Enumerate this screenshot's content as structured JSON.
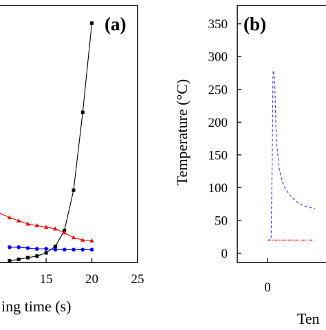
{
  "chart_data": [
    {
      "panel_label": "(a)",
      "type": "line",
      "xlabel": "ing time (s)",
      "ylabel": "",
      "xlim": [
        9.2,
        25
      ],
      "ylim": [
        0,
        320
      ],
      "x_ticks": [
        15,
        20,
        25
      ],
      "x_tick_labels": [
        "15",
        "20",
        "25"
      ],
      "grid": false,
      "series": [
        {
          "color": "#000000",
          "marker": "square",
          "x": [
            11,
            12,
            13,
            14,
            15,
            16,
            17,
            18,
            19,
            20
          ],
          "y": [
            2,
            4,
            6,
            8,
            12,
            20,
            40,
            90,
            187,
            298
          ]
        },
        {
          "color": "#ff0000",
          "marker": "triangle",
          "x": [
            9.8,
            11,
            12,
            13,
            14,
            15,
            16,
            17,
            18,
            19,
            20
          ],
          "y": [
            62,
            56,
            52,
            48,
            46,
            44,
            42,
            37,
            31,
            28,
            27
          ]
        },
        {
          "color": "#0000ff",
          "marker": "circle",
          "x": [
            11,
            12,
            13,
            14,
            15,
            16,
            17,
            18,
            19,
            20
          ],
          "y": [
            19,
            19,
            18,
            17,
            17,
            16,
            16,
            16,
            16,
            16
          ]
        }
      ]
    },
    {
      "panel_label": "(b)",
      "type": "line",
      "xlabel": "Ten",
      "ylabel": "Temperature (°C)",
      "xlim": [
        -5,
        10
      ],
      "ylim": [
        -20,
        370
      ],
      "x_ticks": [
        0
      ],
      "x_tick_labels": [
        "0"
      ],
      "y_ticks": [
        0,
        50,
        100,
        150,
        200,
        250,
        300,
        350
      ],
      "y_tick_labels": [
        "0",
        "50",
        "100",
        "150",
        "200",
        "250",
        "300",
        "350"
      ],
      "grid": false,
      "series": [
        {
          "color": "#4444ee",
          "style": "dashed",
          "x": [
            0,
            0.3,
            0.6,
            0.8,
            0.92,
            1.0,
            1.2,
            1.5,
            2.0,
            2.5,
            3.0,
            3.5,
            4.0,
            5.0,
            6.0,
            7.0,
            8.0
          ],
          "y": [
            20,
            20,
            22,
            150,
            272,
            279,
            265,
            170,
            128,
            109,
            99,
            92,
            86,
            78,
            73,
            70,
            68
          ]
        },
        {
          "color": "#ff0000",
          "style": "dashdot",
          "x": [
            0,
            8
          ],
          "y": [
            20,
            20
          ]
        }
      ]
    }
  ]
}
